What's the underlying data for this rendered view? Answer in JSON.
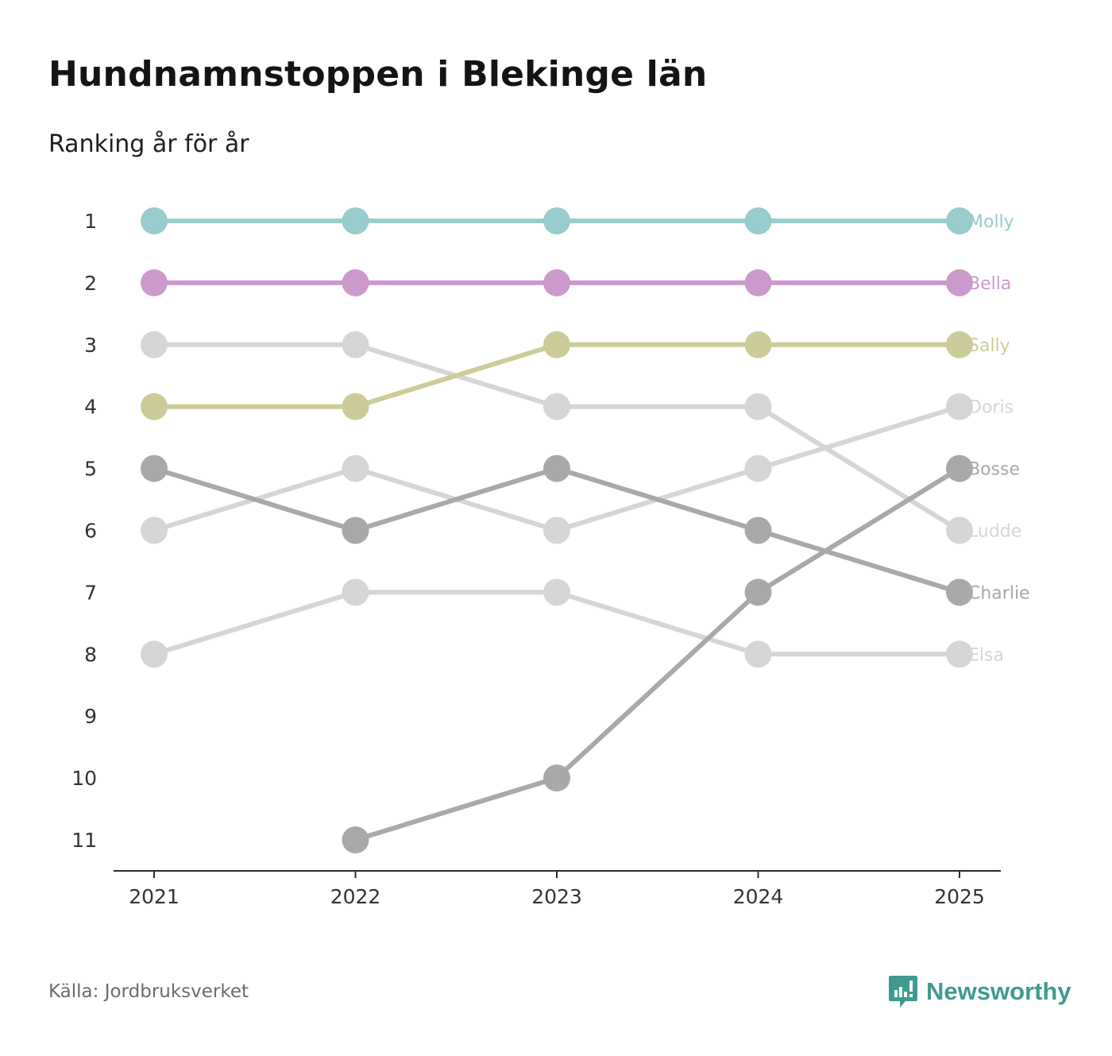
{
  "title": "Hundnamnstoppen i Blekinge län",
  "subtitle": "Ranking år för år",
  "source": "Källa: Jordbruksverket",
  "brand": {
    "name": "Newsworthy",
    "icon": "newsworthy-logo-icon",
    "color": "#3f9a91"
  },
  "chart_data": {
    "type": "line",
    "title": "Hundnamnstoppen i Blekinge län",
    "subtitle": "Ranking år för år",
    "xlabel": "",
    "ylabel": "",
    "x": [
      "2021",
      "2022",
      "2023",
      "2024",
      "2025"
    ],
    "ylim": [
      1,
      11
    ],
    "y_inverted": true,
    "yticks": [
      "1",
      "2",
      "3",
      "4",
      "5",
      "6",
      "7",
      "8",
      "9",
      "10",
      "11"
    ],
    "grid": false,
    "legend": "labels at line ends (right)",
    "series": [
      {
        "name": "Elsa",
        "values": [
          8,
          7,
          7,
          8,
          8
        ],
        "color": "#d6d6d6",
        "highlight": false
      },
      {
        "name": "Ludde",
        "values": [
          3,
          3,
          4,
          4,
          6
        ],
        "color": "#d6d6d6",
        "highlight": false
      },
      {
        "name": "Doris",
        "values": [
          6,
          5,
          6,
          5,
          4
        ],
        "color": "#d6d6d6",
        "highlight": false
      },
      {
        "name": "Charlie",
        "values": [
          5,
          6,
          5,
          6,
          7
        ],
        "color": "#a9a9a9",
        "highlight": false
      },
      {
        "name": "Bosse",
        "values": [
          null,
          11,
          10,
          7,
          5
        ],
        "color": "#a9a9a9",
        "highlight": false
      },
      {
        "name": "Sally",
        "values": [
          4,
          4,
          3,
          3,
          3
        ],
        "color": "#cccc99",
        "highlight": true
      },
      {
        "name": "Bella",
        "values": [
          2,
          2,
          2,
          2,
          2
        ],
        "color": "#cc99cc",
        "highlight": true
      },
      {
        "name": "Molly",
        "values": [
          1,
          1,
          1,
          1,
          1
        ],
        "color": "#99cccc",
        "highlight": true
      }
    ]
  }
}
